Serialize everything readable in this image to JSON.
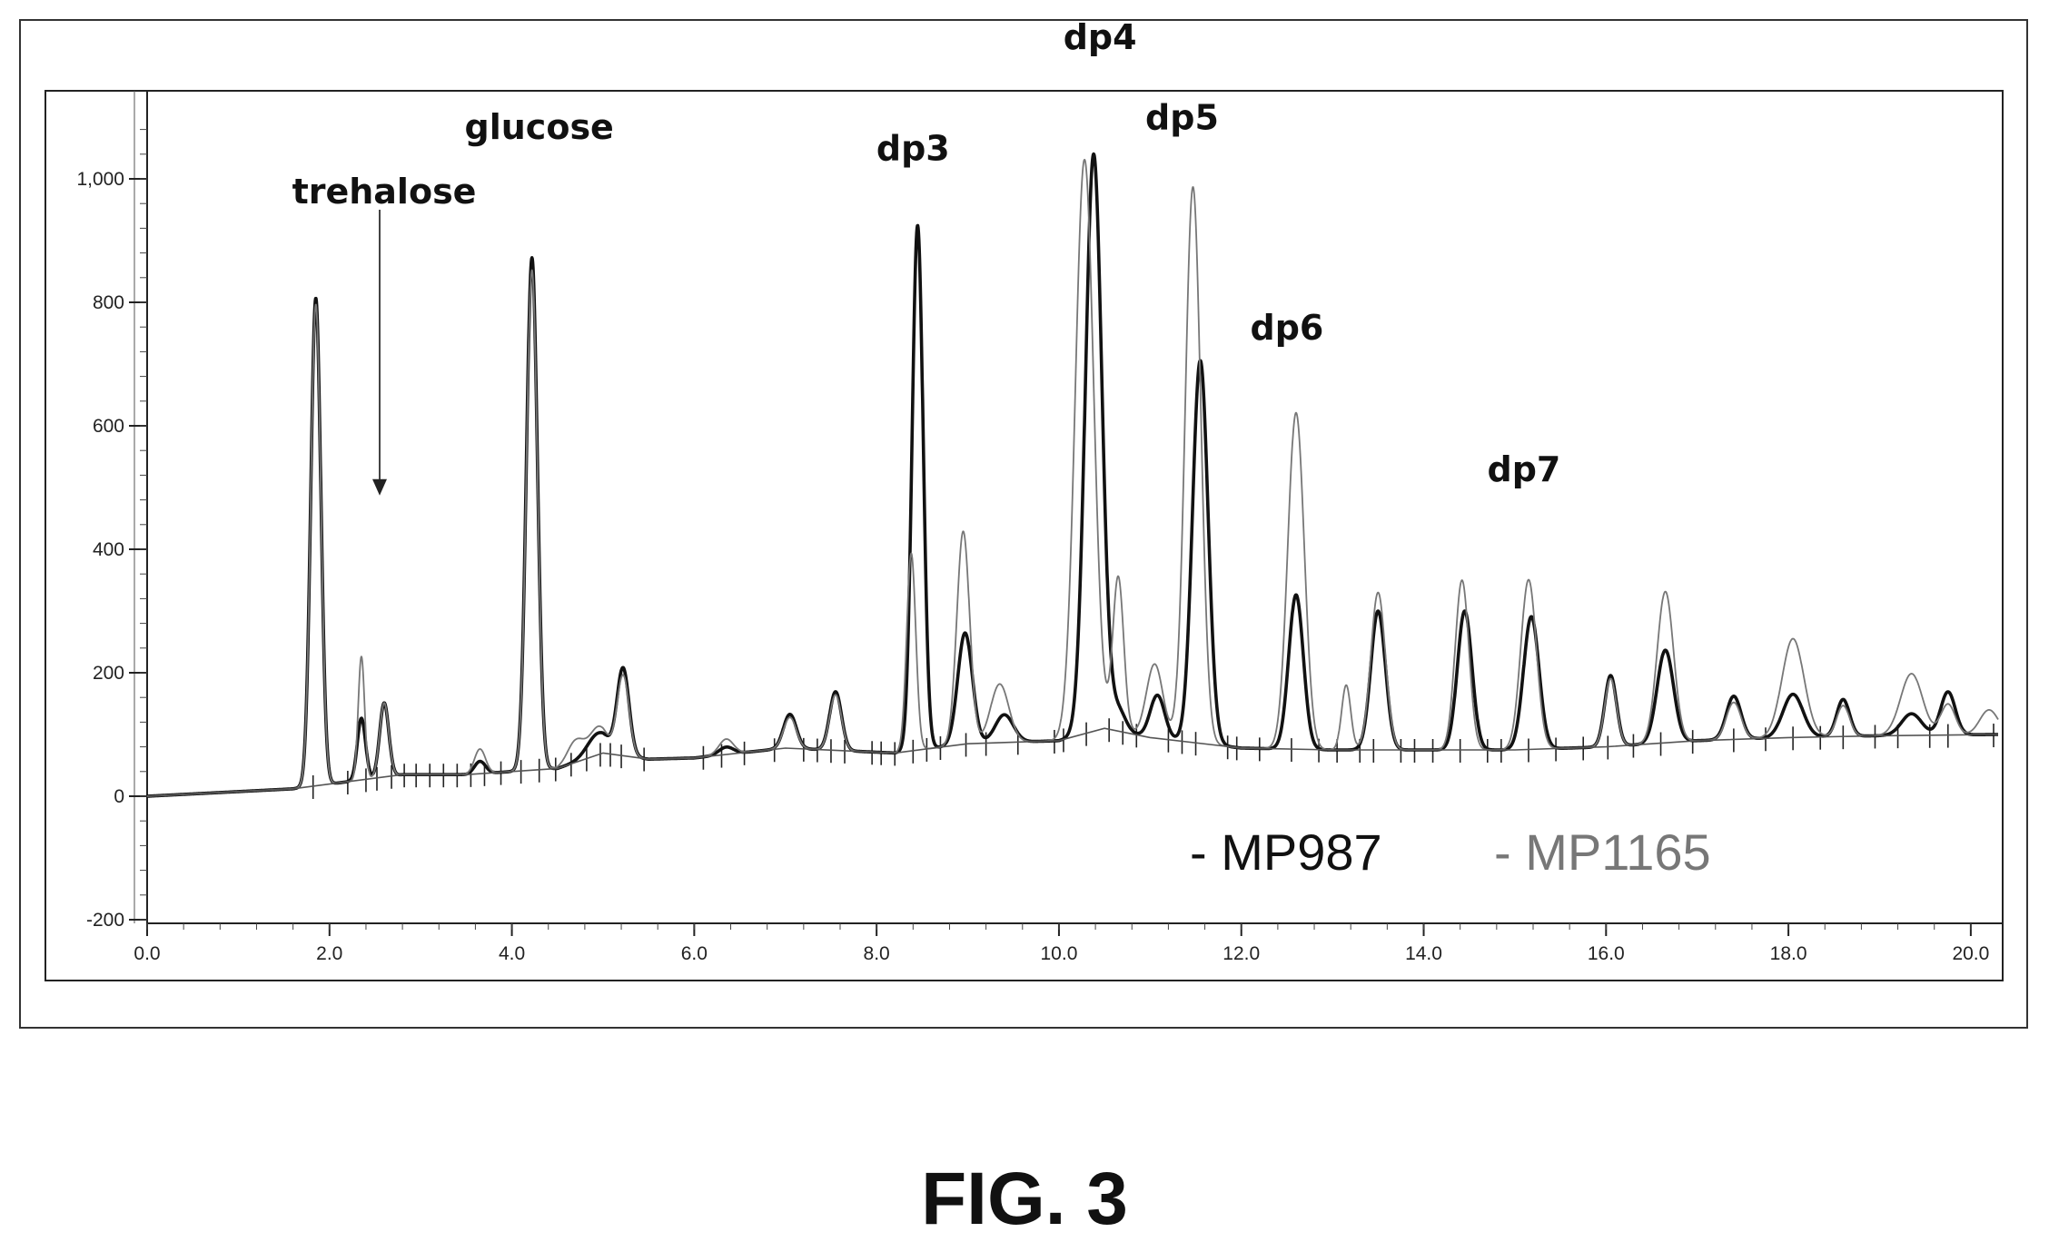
{
  "chart_data": {
    "type": "line",
    "title": "",
    "xlabel": "",
    "ylabel": "",
    "xlim": [
      0,
      20.3
    ],
    "ylim": [
      -200,
      1150
    ],
    "x_ticks": [
      "0.0",
      "2.0",
      "4.0",
      "6.0",
      "8.0",
      "10.0",
      "12.0",
      "14.0",
      "16.0",
      "18.0",
      "20.0"
    ],
    "y_ticks": [
      "-200",
      "0",
      "200",
      "400",
      "600",
      "800",
      "1,000"
    ],
    "grid": false,
    "legend_position": "bottom-right",
    "series": [
      {
        "name": "MP987",
        "color": "#111111",
        "baseline": 0,
        "peaks": [
          [
            1.85,
            790,
            0.055
          ],
          [
            2.35,
            100,
            0.045
          ],
          [
            2.6,
            120,
            0.05
          ],
          [
            3.65,
            20,
            0.06
          ],
          [
            4.22,
            830,
            0.06
          ],
          [
            4.95,
            35,
            0.12
          ],
          [
            5.22,
            140,
            0.065
          ],
          [
            6.35,
            12,
            0.08
          ],
          [
            7.05,
            55,
            0.07
          ],
          [
            7.55,
            95,
            0.065
          ],
          [
            8.45,
            850,
            0.06
          ],
          [
            8.97,
            180,
            0.08
          ],
          [
            9.4,
            45,
            0.1
          ],
          [
            10.38,
            935,
            0.09
          ],
          [
            10.65,
            35,
            0.08
          ],
          [
            11.08,
            70,
            0.08
          ],
          [
            11.55,
            620,
            0.085
          ],
          [
            12.6,
            250,
            0.08
          ],
          [
            13.5,
            225,
            0.08
          ],
          [
            14.45,
            225,
            0.08
          ],
          [
            15.18,
            215,
            0.085
          ],
          [
            16.05,
            115,
            0.065
          ],
          [
            16.65,
            150,
            0.09
          ],
          [
            17.4,
            70,
            0.08
          ],
          [
            18.05,
            70,
            0.11
          ],
          [
            18.6,
            60,
            0.07
          ],
          [
            19.35,
            35,
            0.11
          ],
          [
            19.75,
            70,
            0.08
          ]
        ]
      },
      {
        "name": "MP1165",
        "color": "#777777",
        "baseline": 0,
        "peaks": [
          [
            1.85,
            780,
            0.055
          ],
          [
            2.35,
            200,
            0.035
          ],
          [
            2.6,
            120,
            0.05
          ],
          [
            3.65,
            40,
            0.06
          ],
          [
            4.22,
            810,
            0.06
          ],
          [
            4.7,
            35,
            0.09
          ],
          [
            4.95,
            45,
            0.1
          ],
          [
            5.22,
            130,
            0.065
          ],
          [
            6.35,
            25,
            0.08
          ],
          [
            7.05,
            50,
            0.07
          ],
          [
            7.55,
            90,
            0.065
          ],
          [
            8.38,
            320,
            0.05
          ],
          [
            8.95,
            345,
            0.07
          ],
          [
            9.35,
            95,
            0.1
          ],
          [
            10.28,
            930,
            0.1
          ],
          [
            10.65,
            250,
            0.06
          ],
          [
            11.05,
            120,
            0.09
          ],
          [
            11.47,
            900,
            0.085
          ],
          [
            12.6,
            545,
            0.09
          ],
          [
            13.15,
            105,
            0.05
          ],
          [
            13.5,
            255,
            0.08
          ],
          [
            14.42,
            275,
            0.075
          ],
          [
            15.15,
            275,
            0.085
          ],
          [
            16.05,
            110,
            0.065
          ],
          [
            16.65,
            245,
            0.09
          ],
          [
            17.4,
            60,
            0.08
          ],
          [
            18.05,
            160,
            0.12
          ],
          [
            18.6,
            50,
            0.07
          ],
          [
            19.35,
            100,
            0.12
          ],
          [
            19.75,
            50,
            0.08
          ],
          [
            20.2,
            40,
            0.1
          ]
        ]
      },
      {
        "name": "",
        "color": "#555555",
        "points": [
          [
            0,
            0
          ],
          [
            1.6,
            12
          ],
          [
            2.8,
            35
          ],
          [
            3.5,
            35
          ],
          [
            4.5,
            45
          ],
          [
            5.0,
            70
          ],
          [
            5.5,
            60
          ],
          [
            6.0,
            62
          ],
          [
            7.0,
            78
          ],
          [
            8.2,
            70
          ],
          [
            9.0,
            85
          ],
          [
            10.0,
            90
          ],
          [
            10.5,
            110
          ],
          [
            11.0,
            95
          ],
          [
            12.0,
            78
          ],
          [
            13.0,
            75
          ],
          [
            14.0,
            75
          ],
          [
            15.0,
            75
          ],
          [
            16.0,
            80
          ],
          [
            17.0,
            90
          ],
          [
            18.0,
            95
          ],
          [
            19.0,
            98
          ],
          [
            20.3,
            100
          ]
        ]
      }
    ],
    "annotations": [
      {
        "text": "trehalose",
        "x": 2.6,
        "y": 960
      },
      {
        "text": "glucose",
        "x": 4.3,
        "y": 1065
      },
      {
        "text": "dp3",
        "x": 8.4,
        "y": 1030
      },
      {
        "text": "dp4",
        "x": 10.45,
        "y": 1210
      },
      {
        "text": "dp5",
        "x": 11.35,
        "y": 1080
      },
      {
        "text": "dp6",
        "x": 12.5,
        "y": 740
      },
      {
        "text": "dp7",
        "x": 15.1,
        "y": 510
      }
    ],
    "arrow": {
      "x": 2.55,
      "y_from": 950,
      "y_to": 490
    },
    "integration_marks": [
      1.82,
      2.2,
      2.4,
      2.52,
      2.68,
      2.82,
      2.95,
      3.1,
      3.25,
      3.4,
      3.55,
      3.7,
      3.88,
      4.1,
      4.3,
      4.48,
      4.65,
      4.82,
      4.97,
      5.08,
      5.2,
      5.45,
      6.1,
      6.3,
      6.55,
      6.88,
      7.2,
      7.35,
      7.5,
      7.65,
      7.95,
      8.05,
      8.2,
      8.4,
      8.55,
      8.7,
      8.98,
      9.2,
      9.55,
      9.95,
      10.05,
      10.3,
      10.55,
      10.7,
      10.85,
      11.2,
      11.35,
      11.5,
      11.85,
      11.95,
      12.2,
      12.55,
      12.85,
      13.05,
      13.3,
      13.45,
      13.75,
      13.9,
      14.1,
      14.4,
      14.7,
      14.85,
      15.15,
      15.45,
      15.75,
      16.02,
      16.3,
      16.6,
      16.95,
      17.4,
      17.75,
      18.05,
      18.35,
      18.6,
      18.95,
      19.2,
      19.55,
      19.75,
      20.25
    ],
    "legend": [
      {
        "text": "- MP987",
        "color": "#111111"
      },
      {
        "text": "- MP1165",
        "color": "#777777"
      }
    ]
  },
  "figure_label": "FIG. 3"
}
